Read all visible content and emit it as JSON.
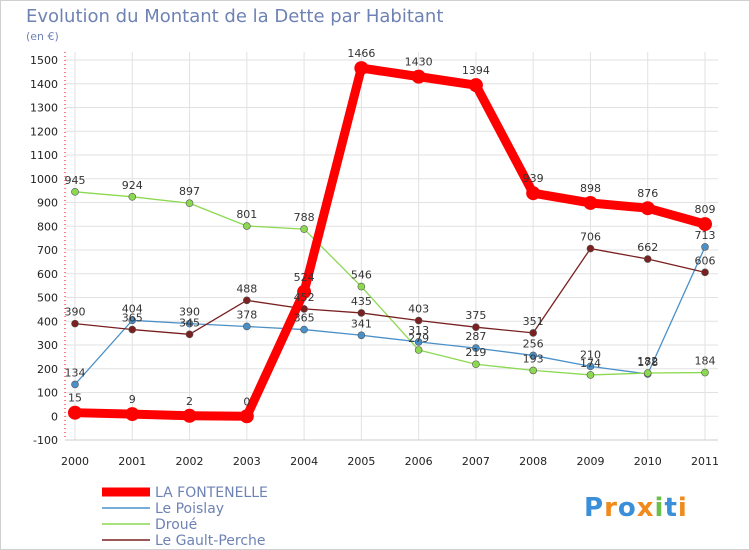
{
  "chart_data": {
    "type": "line",
    "title": "Evolution du Montant de la Dette par Habitant",
    "subtitle": "(en €)",
    "xlabel": "",
    "ylabel": "",
    "categories": [
      "2000",
      "2001",
      "2002",
      "2003",
      "2004",
      "2005",
      "2006",
      "2007",
      "2008",
      "2009",
      "2010",
      "2011"
    ],
    "ylim": [
      -100,
      1500
    ],
    "yticks": [
      -100,
      0,
      100,
      200,
      300,
      400,
      500,
      600,
      700,
      800,
      900,
      1000,
      1100,
      1200,
      1300,
      1400,
      1500
    ],
    "grid": true,
    "legend_position": "bottom-left",
    "series": [
      {
        "name": "LA FONTENELLE",
        "color": "#ff0000",
        "values": [
          15,
          9,
          2,
          0,
          524,
          1466,
          1430,
          1394,
          939,
          898,
          876,
          809
        ]
      },
      {
        "name": "Le Poislay",
        "color": "#4a90c8",
        "values": [
          134,
          404,
          390,
          378,
          365,
          341,
          313,
          287,
          256,
          210,
          178,
          713
        ]
      },
      {
        "name": "Droué",
        "color": "#8cd850",
        "values": [
          945,
          924,
          897,
          801,
          788,
          546,
          279,
          219,
          193,
          174,
          182,
          184
        ]
      },
      {
        "name": "Le Gault-Perche",
        "color": "#7a2020",
        "values": [
          390,
          365,
          345,
          488,
          452,
          435,
          403,
          375,
          351,
          706,
          662,
          606
        ]
      }
    ]
  },
  "watermark": {
    "text": "Proxiti"
  }
}
